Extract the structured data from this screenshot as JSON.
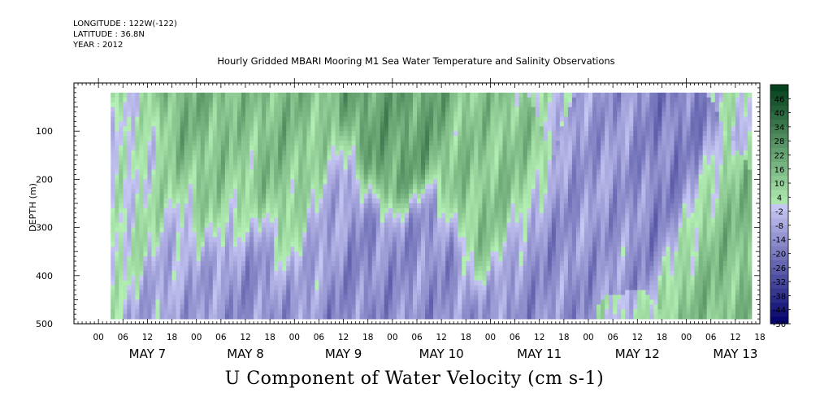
{
  "metadata": {
    "longitude": "LONGITUDE : 122W(-122)",
    "latitude": "LATITUDE : 36.8N",
    "year": "YEAR : 2012"
  },
  "chart_data": {
    "type": "heatmap",
    "title": "Hourly Gridded MBARI Mooring M1 Sea Water Temperature and Salinity Observations",
    "variable_title": "U Component of Water Velocity (cm s-1)",
    "ylabel": "DEPTH (m)",
    "ylim": [
      500,
      0
    ],
    "y_ticks": [
      100,
      200,
      300,
      400,
      500
    ],
    "y_tick_labels": [
      "100",
      "200",
      "300",
      "400",
      "500"
    ],
    "data_depth_range": [
      20,
      490
    ],
    "x_range_hours": [
      -6,
      162
    ],
    "x_hour_labels": [
      "00",
      "06",
      "12",
      "18",
      "00",
      "06",
      "12",
      "18",
      "00",
      "06",
      "12",
      "18",
      "00",
      "06",
      "12",
      "18",
      "00",
      "06",
      "12",
      "18",
      "00",
      "06",
      "12",
      "18",
      "00",
      "06",
      "12",
      "18"
    ],
    "x_day_labels": [
      "MAY  7",
      "MAY  8",
      "MAY  9",
      "MAY 10",
      "MAY 11",
      "MAY 12",
      "MAY 13"
    ],
    "colorbar": {
      "labels": [
        "46",
        "40",
        "34",
        "28",
        "22",
        "16",
        "10",
        "4",
        "-2",
        "-8",
        "-14",
        "-20",
        "-26",
        "-32",
        "-38",
        "-44",
        "-50"
      ],
      "range": [
        -50,
        52
      ],
      "step": 3
    },
    "colors": {
      "positive_low": "#b4f0b4",
      "positive_high": "#003c18",
      "negative_low": "#c8c8f4",
      "negative_high": "#00006a"
    },
    "depth_profiles": [
      {
        "hour": 0,
        "depth": 30,
        "value": 12
      },
      {
        "hour": 6,
        "depth": 150,
        "value": -6
      },
      {
        "hour": 12,
        "depth": 250,
        "value": 8
      },
      {
        "hour": 18,
        "depth": 400,
        "value": -10
      },
      {
        "hour": 24,
        "depth": 50,
        "value": 18
      },
      {
        "hour": 30,
        "depth": 200,
        "value": 10
      },
      {
        "hour": 36,
        "depth": 420,
        "value": -14
      },
      {
        "hour": 48,
        "depth": 200,
        "value": 16
      },
      {
        "hour": 54,
        "depth": 300,
        "value": -8
      },
      {
        "hour": 60,
        "depth": 380,
        "value": -16
      },
      {
        "hour": 72,
        "depth": 60,
        "value": 22
      },
      {
        "hour": 80,
        "depth": 430,
        "value": -14
      },
      {
        "hour": 96,
        "depth": 200,
        "value": 12
      },
      {
        "hour": 108,
        "depth": 430,
        "value": -14
      },
      {
        "hour": 126,
        "depth": 200,
        "value": -12
      },
      {
        "hour": 140,
        "depth": 200,
        "value": -18
      },
      {
        "hour": 150,
        "depth": 350,
        "value": 14
      }
    ]
  }
}
